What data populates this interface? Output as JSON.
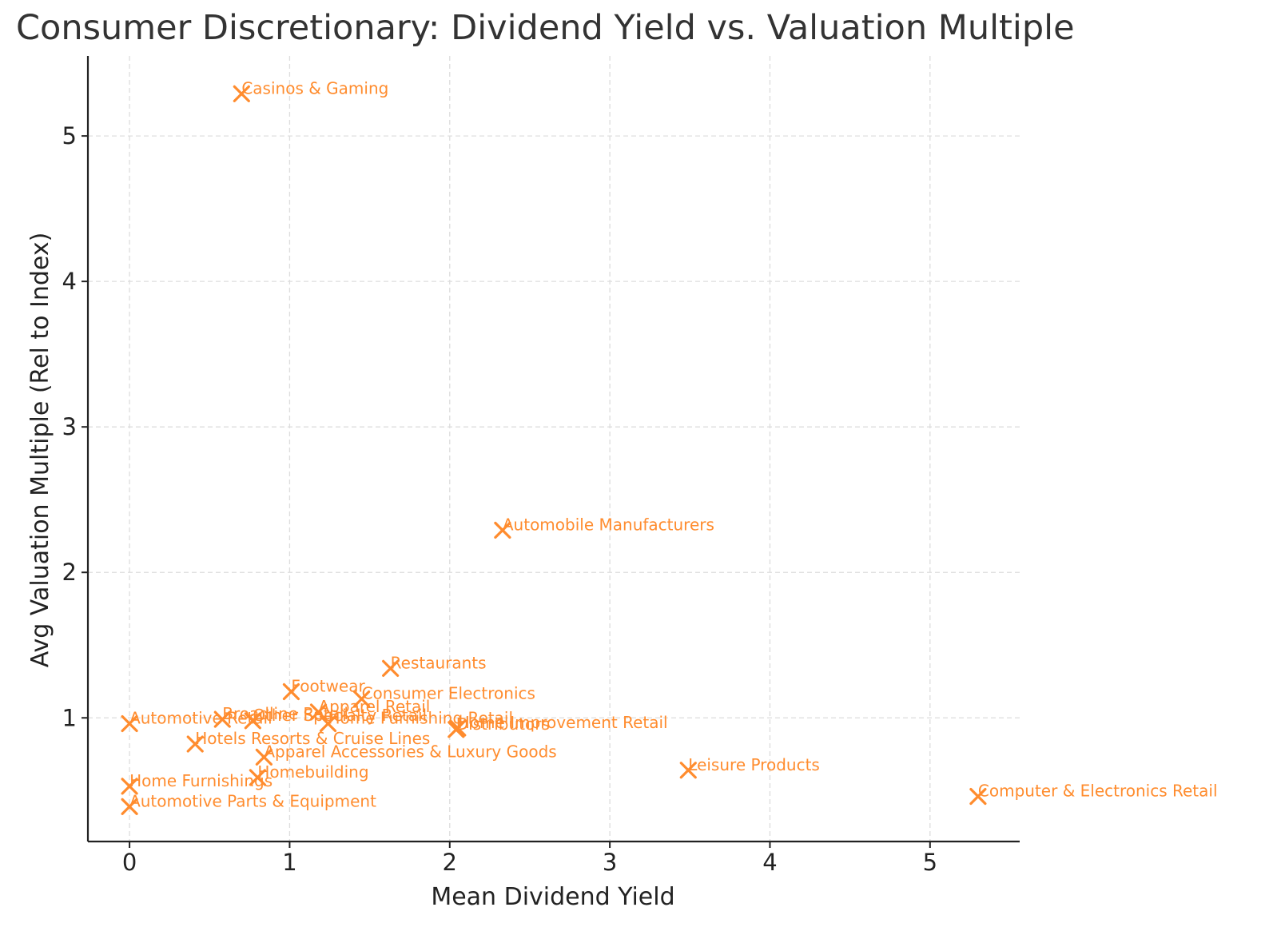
{
  "chart_data": {
    "type": "scatter",
    "title": "Consumer Discretionary: Dividend Yield vs. Valuation Multiple",
    "xlabel": "Mean Dividend Yield",
    "ylabel": "Avg Valuation Multiple (Rel to Index)",
    "xlim": [
      -0.26,
      5.56
    ],
    "ylim": [
      0.15,
      5.55
    ],
    "xticks": [
      0,
      1,
      2,
      3,
      4,
      5
    ],
    "yticks": [
      1,
      2,
      3,
      4,
      5
    ],
    "xtick_labels": [
      "0",
      "1",
      "2",
      "3",
      "4",
      "5"
    ],
    "ytick_labels": [
      "1",
      "2",
      "3",
      "4",
      "5"
    ],
    "grid": true,
    "marker": "x",
    "color": "#ff8c2e",
    "points": [
      {
        "label": "Casinos & Gaming",
        "x": 0.7,
        "y": 5.29
      },
      {
        "label": "Automobile Manufacturers",
        "x": 2.33,
        "y": 2.29
      },
      {
        "label": "Restaurants",
        "x": 1.63,
        "y": 1.34
      },
      {
        "label": "Footwear",
        "x": 1.01,
        "y": 1.18
      },
      {
        "label": "Consumer Electronics",
        "x": 1.45,
        "y": 1.13
      },
      {
        "label": "Apparel Retail",
        "x": 1.18,
        "y": 1.04
      },
      {
        "label": "Broadline Retail",
        "x": 0.58,
        "y": 0.99
      },
      {
        "label": "Other Specialty Retail",
        "x": 0.77,
        "y": 0.98
      },
      {
        "label": "Home Furnishing Retail",
        "x": 1.24,
        "y": 0.96
      },
      {
        "label": "Automotive Retail",
        "x": 0.0,
        "y": 0.96
      },
      {
        "label": "Home Improvement Retail",
        "x": 2.05,
        "y": 0.93
      },
      {
        "label": "Distributors",
        "x": 2.04,
        "y": 0.92
      },
      {
        "label": "Hotels Resorts & Cruise Lines",
        "x": 0.41,
        "y": 0.82
      },
      {
        "label": "Apparel Accessories & Luxury Goods",
        "x": 0.84,
        "y": 0.73
      },
      {
        "label": "Leisure Products",
        "x": 3.49,
        "y": 0.64
      },
      {
        "label": "Homebuilding",
        "x": 0.8,
        "y": 0.59
      },
      {
        "label": "Home Furnishings",
        "x": 0.0,
        "y": 0.53
      },
      {
        "label": "Computer & Electronics Retail",
        "x": 5.3,
        "y": 0.46
      },
      {
        "label": "Automotive Parts & Equipment",
        "x": 0.0,
        "y": 0.39
      }
    ]
  }
}
